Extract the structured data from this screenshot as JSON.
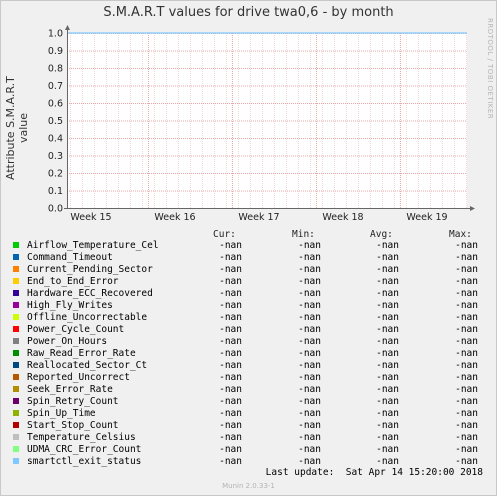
{
  "chart_data": {
    "type": "line",
    "title": "S.M.A.R.T values for drive twa0,6 - by month",
    "ylabel": "Attribute S.M.A.R.T value",
    "xlabel": "",
    "ylim": [
      0,
      1.0
    ],
    "y_ticks": [
      "0.0",
      "0.1",
      "0.2",
      "0.3",
      "0.4",
      "0.5",
      "0.6",
      "0.7",
      "0.8",
      "0.9",
      "1.0"
    ],
    "x_ticks": [
      "Week 15",
      "Week 16",
      "Week 17",
      "Week 18",
      "Week 19"
    ],
    "grid": true,
    "series": [
      {
        "name": "Airflow_Temperature_Cel",
        "color": "#00cc00",
        "cur": "-nan",
        "min": "-nan",
        "avg": "-nan",
        "max": "-nan"
      },
      {
        "name": "Command_Timeout",
        "color": "#0066b3",
        "cur": "-nan",
        "min": "-nan",
        "avg": "-nan",
        "max": "-nan"
      },
      {
        "name": "Current_Pending_Sector",
        "color": "#ff8000",
        "cur": "-nan",
        "min": "-nan",
        "avg": "-nan",
        "max": "-nan"
      },
      {
        "name": "End_to_End_Error",
        "color": "#ffcc00",
        "cur": "-nan",
        "min": "-nan",
        "avg": "-nan",
        "max": "-nan"
      },
      {
        "name": "Hardware_ECC_Recovered",
        "color": "#330099",
        "cur": "-nan",
        "min": "-nan",
        "avg": "-nan",
        "max": "-nan"
      },
      {
        "name": "High_Fly_Writes",
        "color": "#990099",
        "cur": "-nan",
        "min": "-nan",
        "avg": "-nan",
        "max": "-nan"
      },
      {
        "name": "Offline_Uncorrectable",
        "color": "#ccff00",
        "cur": "-nan",
        "min": "-nan",
        "avg": "-nan",
        "max": "-nan"
      },
      {
        "name": "Power_Cycle_Count",
        "color": "#ff0000",
        "cur": "-nan",
        "min": "-nan",
        "avg": "-nan",
        "max": "-nan"
      },
      {
        "name": "Power_On_Hours",
        "color": "#808080",
        "cur": "-nan",
        "min": "-nan",
        "avg": "-nan",
        "max": "-nan"
      },
      {
        "name": "Raw_Read_Error_Rate",
        "color": "#008f00",
        "cur": "-nan",
        "min": "-nan",
        "avg": "-nan",
        "max": "-nan"
      },
      {
        "name": "Reallocated_Sector_Ct",
        "color": "#00487d",
        "cur": "-nan",
        "min": "-nan",
        "avg": "-nan",
        "max": "-nan"
      },
      {
        "name": "Reported_Uncorrect",
        "color": "#b35a00",
        "cur": "-nan",
        "min": "-nan",
        "avg": "-nan",
        "max": "-nan"
      },
      {
        "name": "Seek_Error_Rate",
        "color": "#b38f00",
        "cur": "-nan",
        "min": "-nan",
        "avg": "-nan",
        "max": "-nan"
      },
      {
        "name": "Spin_Retry_Count",
        "color": "#6b006b",
        "cur": "-nan",
        "min": "-nan",
        "avg": "-nan",
        "max": "-nan"
      },
      {
        "name": "Spin_Up_Time",
        "color": "#8fb300",
        "cur": "-nan",
        "min": "-nan",
        "avg": "-nan",
        "max": "-nan"
      },
      {
        "name": "Start_Stop_Count",
        "color": "#b30000",
        "cur": "-nan",
        "min": "-nan",
        "avg": "-nan",
        "max": "-nan"
      },
      {
        "name": "Temperature_Celsius",
        "color": "#bebebe",
        "cur": "-nan",
        "min": "-nan",
        "avg": "-nan",
        "max": "-nan"
      },
      {
        "name": "UDMA_CRC_Error_Count",
        "color": "#80ff80",
        "cur": "-nan",
        "min": "-nan",
        "avg": "-nan",
        "max": "-nan"
      },
      {
        "name": "smartctl_exit_status",
        "color": "#80c9ff",
        "cur": "-nan",
        "min": "-nan",
        "avg": "-nan",
        "max": "-nan"
      }
    ]
  },
  "legend_headers": {
    "cur": "Cur:",
    "min": "Min:",
    "avg": "Avg:",
    "max": "Max:"
  },
  "side_credit": "RRDTOOL / TOBI OETIKER",
  "last_update": "Last update:  Sat Apr 14 15:20:00 2018",
  "footer": "Munin 2.0.33-1"
}
